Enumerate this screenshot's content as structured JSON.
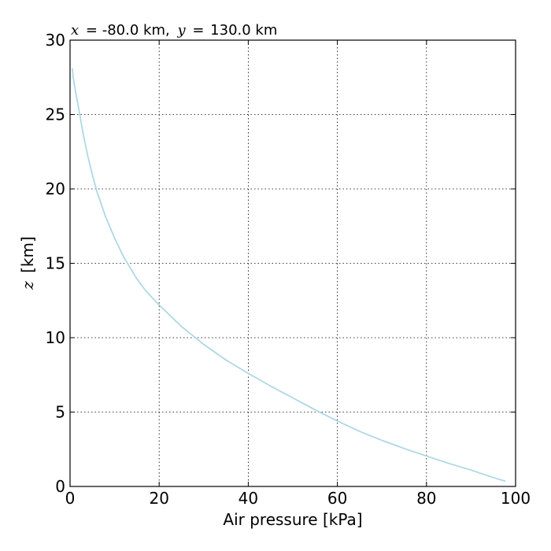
{
  "chart_data": {
    "type": "line",
    "title": {
      "x_var": "x",
      "x_val": "-80.0 km,",
      "y_var": "y",
      "y_val": "130.0 km",
      "eq": "="
    },
    "xlabel": "Air pressure [kPa]",
    "ylabel": {
      "var": "z",
      "unit": "[km]"
    },
    "xlim": [
      0,
      100
    ],
    "ylim": [
      0,
      30
    ],
    "xticks": [
      0,
      20,
      40,
      60,
      80,
      100
    ],
    "yticks": [
      0,
      5,
      10,
      15,
      20,
      25,
      30
    ],
    "grid": true,
    "series": [
      {
        "color": "#add8e6",
        "x": [
          97.7,
          95,
          90,
          85,
          80,
          75,
          70,
          65,
          60,
          55,
          50,
          45,
          40,
          35,
          30,
          25,
          20,
          17,
          15,
          12,
          10,
          8,
          6,
          5,
          4,
          3,
          2,
          1.5,
          1,
          0.7,
          0.5
        ],
        "y": [
          0.35,
          0.6,
          1.1,
          1.55,
          2.05,
          2.55,
          3.1,
          3.7,
          4.4,
          5.15,
          5.95,
          6.75,
          7.6,
          8.5,
          9.55,
          10.75,
          12.2,
          13.15,
          13.95,
          15.45,
          16.7,
          18.1,
          19.85,
          20.95,
          22.2,
          23.6,
          25.3,
          26.1,
          26.95,
          27.5,
          28.1
        ]
      }
    ]
  }
}
